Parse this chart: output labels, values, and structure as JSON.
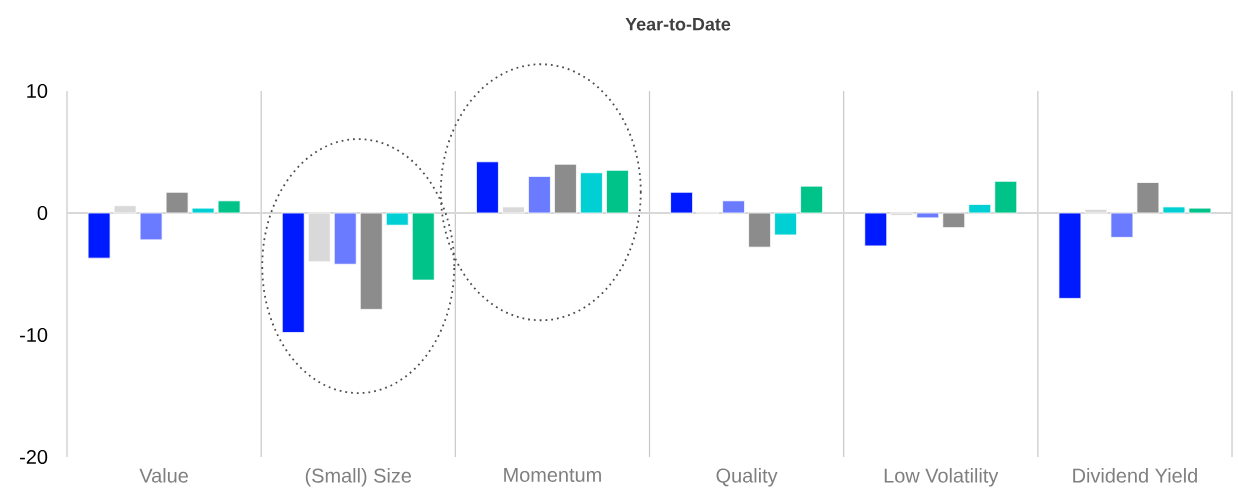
{
  "chart_data": {
    "type": "bar",
    "title": "Year-to-Date",
    "categories": [
      "Value",
      "(Small) Size",
      "Momentum",
      "Quality",
      "Low Volatility",
      "Dividend Yield"
    ],
    "series": [
      {
        "color": "#001aff",
        "values": [
          -3.7,
          -9.8,
          4.2,
          1.7,
          -2.7,
          -7.0
        ]
      },
      {
        "color": "#d9d9d9",
        "values": [
          0.6,
          -4.0,
          0.5,
          0.1,
          -0.2,
          0.3
        ]
      },
      {
        "color": "#6b7bff",
        "values": [
          -2.2,
          -4.2,
          3.0,
          1.0,
          -0.4,
          -2.0
        ]
      },
      {
        "color": "#8c8c8c",
        "values": [
          1.7,
          -7.9,
          4.0,
          -2.8,
          -1.2,
          2.5
        ]
      },
      {
        "color": "#00d0d4",
        "values": [
          0.4,
          -1.0,
          3.3,
          -1.8,
          0.7,
          0.5
        ]
      },
      {
        "color": "#00c389",
        "values": [
          1.0,
          -5.5,
          3.5,
          2.2,
          2.6,
          0.4
        ]
      }
    ],
    "ylim": [
      -20,
      10
    ],
    "yticks": [
      -20,
      -10,
      0,
      10
    ],
    "grid": "x"
  }
}
